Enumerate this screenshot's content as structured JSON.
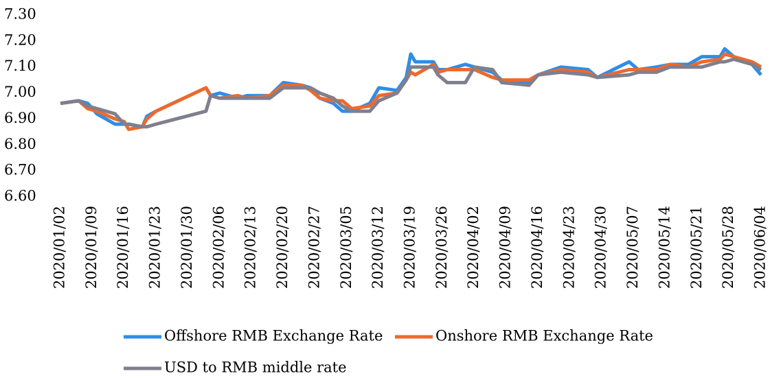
{
  "chart_data": {
    "type": "line",
    "x": [
      "2020/01/02",
      "2020/01/06",
      "2020/01/08",
      "2020/01/10",
      "2020/01/14",
      "2020/01/16",
      "2020/01/17",
      "2020/01/20",
      "2020/01/21",
      "2020/01/23",
      "2020/02/03",
      "2020/02/04",
      "2020/02/06",
      "2020/02/10",
      "2020/02/12",
      "2020/02/17",
      "2020/02/20",
      "2020/02/24",
      "2020/02/26",
      "2020/02/28",
      "2020/03/02",
      "2020/03/04",
      "2020/03/06",
      "2020/03/10",
      "2020/03/12",
      "2020/03/16",
      "2020/03/18",
      "2020/03/19",
      "2020/03/20",
      "2020/03/24",
      "2020/03/25",
      "2020/03/27",
      "2020/03/31",
      "2020/04/02",
      "2020/04/06",
      "2020/04/08",
      "2020/04/14",
      "2020/04/16",
      "2020/04/21",
      "2020/04/27",
      "2020/04/29",
      "2020/05/06",
      "2020/05/08",
      "2020/05/12",
      "2020/05/15",
      "2020/05/19",
      "2020/05/22",
      "2020/05/26",
      "2020/05/27",
      "2020/05/29",
      "2020/06/02",
      "2020/06/04"
    ],
    "series": [
      {
        "name": "Offshore RMB Exchange Rate",
        "color": "#2e8de8",
        "values": [
          6.96,
          6.97,
          6.96,
          6.92,
          6.88,
          6.88,
          6.88,
          6.87,
          6.91,
          6.93,
          7.02,
          6.99,
          7.0,
          6.98,
          6.99,
          6.99,
          7.04,
          7.03,
          7.02,
          6.98,
          6.96,
          6.93,
          6.93,
          6.96,
          7.02,
          7.01,
          7.06,
          7.15,
          7.12,
          7.12,
          7.09,
          7.09,
          7.11,
          7.1,
          7.08,
          7.05,
          7.04,
          7.07,
          7.1,
          7.09,
          7.06,
          7.12,
          7.09,
          7.1,
          7.11,
          7.11,
          7.14,
          7.14,
          7.17,
          7.14,
          7.11,
          7.07
        ]
      },
      {
        "name": "Onshore RMB Exchange Rate",
        "color": "#ed6a2c",
        "values": [
          6.96,
          6.97,
          6.94,
          6.93,
          6.9,
          6.89,
          6.86,
          6.87,
          6.9,
          6.93,
          7.02,
          6.99,
          6.98,
          6.99,
          6.98,
          6.99,
          7.03,
          7.03,
          7.01,
          6.98,
          6.97,
          6.97,
          6.94,
          6.95,
          6.99,
          7.0,
          7.05,
          7.08,
          7.07,
          7.11,
          7.08,
          7.09,
          7.09,
          7.09,
          7.06,
          7.05,
          7.05,
          7.07,
          7.09,
          7.08,
          7.06,
          7.09,
          7.09,
          7.09,
          7.11,
          7.1,
          7.12,
          7.13,
          7.15,
          7.14,
          7.12,
          7.1
        ]
      },
      {
        "name": "USD to RMB middle rate",
        "color": "#7f7f8e",
        "values": [
          6.96,
          6.97,
          6.95,
          6.94,
          6.92,
          6.88,
          6.88,
          6.87,
          6.87,
          6.88,
          6.93,
          6.99,
          6.98,
          6.98,
          6.98,
          6.98,
          7.02,
          7.02,
          7.02,
          7.0,
          6.98,
          6.95,
          6.93,
          6.93,
          6.97,
          7.0,
          7.05,
          7.1,
          7.1,
          7.1,
          7.07,
          7.04,
          7.04,
          7.1,
          7.09,
          7.04,
          7.03,
          7.07,
          7.08,
          7.07,
          7.06,
          7.07,
          7.08,
          7.08,
          7.1,
          7.1,
          7.1,
          7.12,
          7.12,
          7.13,
          7.11,
          7.09
        ]
      }
    ],
    "xticks": [
      "2020/01/02",
      "2020/01/09",
      "2020/01/16",
      "2020/01/23",
      "2020/01/30",
      "2020/02/06",
      "2020/02/13",
      "2020/02/20",
      "2020/02/27",
      "2020/03/05",
      "2020/03/12",
      "2020/03/19",
      "2020/03/26",
      "2020/04/02",
      "2020/04/09",
      "2020/04/16",
      "2020/04/23",
      "2020/04/30",
      "2020/05/07",
      "2020/05/14",
      "2020/05/21",
      "2020/05/28",
      "2020/06/04"
    ],
    "ylim": [
      6.6,
      7.3
    ],
    "yticks": [
      {
        "value": 6.6,
        "label": "6.60"
      },
      {
        "value": 6.7,
        "label": "6.70"
      },
      {
        "value": 6.8,
        "label": "6.80"
      },
      {
        "value": 6.9,
        "label": "6.90"
      },
      {
        "value": 7.0,
        "label": "7.00"
      },
      {
        "value": 7.1,
        "label": "7.10"
      },
      {
        "value": 7.2,
        "label": "7.20"
      },
      {
        "value": 7.3,
        "label": "7.30"
      }
    ],
    "legend": "bottom"
  }
}
